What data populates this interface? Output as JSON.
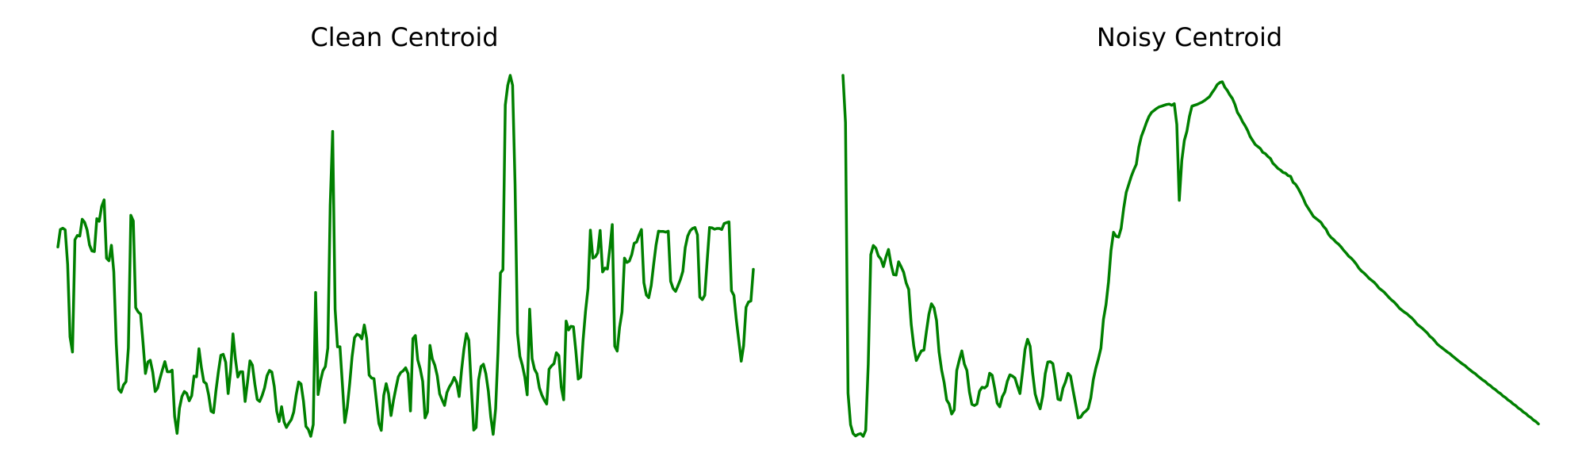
{
  "chart_data": [
    {
      "type": "line",
      "title": "Clean Centroid",
      "xlabel": "",
      "ylabel": "",
      "axes_visible": false,
      "grid": false,
      "color": "#008000",
      "series": [
        {
          "values": [
            0.579,
            0.632,
            0.636,
            0.631,
            0.526,
            0.306,
            0.26,
            0.601,
            0.614,
            0.612,
            0.663,
            0.654,
            0.631,
            0.585,
            0.567,
            0.565,
            0.665,
            0.657,
            0.702,
            0.722,
            0.545,
            0.537,
            0.584,
            0.503,
            0.285,
            0.147,
            0.138,
            0.16,
            0.17,
            0.273,
            0.675,
            0.658,
            0.395,
            0.382,
            0.375,
            0.29,
            0.195,
            0.23,
            0.235,
            0.199,
            0.14,
            0.15,
            0.18,
            0.207,
            0.231,
            0.2,
            0.2,
            0.205,
            0.065,
            0.013,
            0.089,
            0.125,
            0.14,
            0.134,
            0.112,
            0.127,
            0.187,
            0.185,
            0.27,
            0.214,
            0.17,
            0.164,
            0.13,
            0.08,
            0.076,
            0.142,
            0.2,
            0.25,
            0.253,
            0.229,
            0.134,
            0.2,
            0.315,
            0.24,
            0.184,
            0.2,
            0.2,
            0.11,
            0.17,
            0.233,
            0.22,
            0.162,
            0.116,
            0.11,
            0.128,
            0.151,
            0.188,
            0.204,
            0.199,
            0.155,
            0.08,
            0.049,
            0.094,
            0.048,
            0.031,
            0.044,
            0.055,
            0.078,
            0.13,
            0.169,
            0.163,
            0.111,
            0.034,
            0.025,
            0.004,
            0.04,
            0.441,
            0.131,
            0.173,
            0.203,
            0.216,
            0.272,
            0.706,
            0.93,
            0.39,
            0.276,
            0.276,
            0.161,
            0.046,
            0.092,
            0.165,
            0.246,
            0.304,
            0.314,
            0.311,
            0.3,
            0.342,
            0.301,
            0.19,
            0.181,
            0.179,
            0.11,
            0.043,
            0.022,
            0.128,
            0.164,
            0.133,
            0.067,
            0.113,
            0.15,
            0.185,
            0.198,
            0.203,
            0.212,
            0.194,
            0.081,
            0.301,
            0.31,
            0.236,
            0.209,
            0.171,
            0.06,
            0.078,
            0.28,
            0.239,
            0.22,
            0.188,
            0.133,
            0.115,
            0.098,
            0.137,
            0.154,
            0.166,
            0.183,
            0.167,
            0.125,
            0.204,
            0.27,
            0.316,
            0.296,
            0.156,
            0.023,
            0.031,
            0.175,
            0.216,
            0.223,
            0.194,
            0.142,
            0.064,
            0.01,
            0.088,
            0.262,
            0.5,
            0.51,
            1.01,
            1.07,
            1.1,
            1.07,
            0.77,
            0.317,
            0.247,
            0.22,
            0.184,
            0.13,
            0.39,
            0.24,
            0.208,
            0.194,
            0.151,
            0.13,
            0.114,
            0.102,
            0.208,
            0.218,
            0.225,
            0.258,
            0.249,
            0.153,
            0.115,
            0.354,
            0.327,
            0.338,
            0.337,
            0.262,
            0.178,
            0.184,
            0.296,
            0.384,
            0.453,
            0.63,
            0.545,
            0.549,
            0.561,
            0.629,
            0.503,
            0.515,
            0.512,
            0.576,
            0.647,
            0.278,
            0.263,
            0.335,
            0.382,
            0.545,
            0.532,
            0.536,
            0.556,
            0.59,
            0.594,
            0.615,
            0.632,
            0.47,
            0.433,
            0.425,
            0.462,
            0.527,
            0.585,
            0.627,
            0.626,
            0.626,
            0.624,
            0.627,
            0.475,
            0.453,
            0.444,
            0.461,
            0.48,
            0.505,
            0.577,
            0.612,
            0.628,
            0.635,
            0.638,
            0.616,
            0.427,
            0.419,
            0.432,
            0.535,
            0.638,
            0.637,
            0.633,
            0.635,
            0.635,
            0.632,
            0.65,
            0.653,
            0.655,
            0.446,
            0.432,
            0.358,
            0.296,
            0.232,
            0.279,
            0.396,
            0.412,
            0.415,
            0.511
          ]
        }
      ]
    },
    {
      "type": "line",
      "title": "Noisy Centroid",
      "xlabel": "",
      "ylabel": "",
      "axes_visible": false,
      "grid": false,
      "color": "#008000",
      "series": [
        {
          "values": [
            0.913,
            0.795,
            0.117,
            0.038,
            0.016,
            0.01,
            0.014,
            0.016,
            0.009,
            0.024,
            0.19,
            0.464,
            0.487,
            0.48,
            0.461,
            0.453,
            0.434,
            0.458,
            0.477,
            0.44,
            0.414,
            0.413,
            0.446,
            0.434,
            0.42,
            0.393,
            0.377,
            0.289,
            0.235,
            0.199,
            0.211,
            0.223,
            0.225,
            0.271,
            0.315,
            0.341,
            0.331,
            0.299,
            0.22,
            0.175,
            0.144,
            0.1,
            0.09,
            0.065,
            0.075,
            0.174,
            0.2,
            0.223,
            0.19,
            0.174,
            0.12,
            0.089,
            0.086,
            0.09,
            0.122,
            0.132,
            0.13,
            0.136,
            0.167,
            0.162,
            0.13,
            0.092,
            0.083,
            0.108,
            0.12,
            0.147,
            0.163,
            0.16,
            0.155,
            0.135,
            0.116,
            0.169,
            0.227,
            0.252,
            0.235,
            0.167,
            0.115,
            0.093,
            0.078,
            0.11,
            0.166,
            0.195,
            0.196,
            0.191,
            0.15,
            0.102,
            0.1,
            0.13,
            0.145,
            0.167,
            0.16,
            0.124,
            0.09,
            0.055,
            0.057,
            0.067,
            0.072,
            0.079,
            0.105,
            0.151,
            0.18,
            0.203,
            0.23,
            0.302,
            0.339,
            0.396,
            0.474,
            0.52,
            0.51,
            0.508,
            0.53,
            0.58,
            0.62,
            0.64,
            0.66,
            0.676,
            0.69,
            0.733,
            0.76,
            0.777,
            0.795,
            0.81,
            0.82,
            0.825,
            0.83,
            0.834,
            0.836,
            0.838,
            0.84,
            0.841,
            0.838,
            0.842,
            0.79,
            0.6,
            0.7,
            0.75,
            0.773,
            0.81,
            0.836,
            0.838,
            0.84,
            0.843,
            0.846,
            0.85,
            0.855,
            0.86,
            0.87,
            0.879,
            0.89,
            0.895,
            0.897,
            0.883,
            0.875,
            0.864,
            0.855,
            0.84,
            0.82,
            0.81,
            0.797,
            0.787,
            0.775,
            0.76,
            0.75,
            0.74,
            0.735,
            0.73,
            0.72,
            0.717,
            0.71,
            0.705,
            0.693,
            0.687,
            0.68,
            0.676,
            0.67,
            0.668,
            0.662,
            0.66,
            0.645,
            0.64,
            0.63,
            0.618,
            0.605,
            0.59,
            0.58,
            0.57,
            0.56,
            0.555,
            0.55,
            0.545,
            0.535,
            0.528,
            0.515,
            0.507,
            0.502,
            0.495,
            0.49,
            0.483,
            0.475,
            0.468,
            0.46,
            0.455,
            0.448,
            0.44,
            0.43,
            0.423,
            0.418,
            0.412,
            0.405,
            0.4,
            0.395,
            0.388,
            0.38,
            0.375,
            0.37,
            0.363,
            0.356,
            0.35,
            0.345,
            0.338,
            0.33,
            0.325,
            0.32,
            0.316,
            0.31,
            0.305,
            0.298,
            0.29,
            0.285,
            0.28,
            0.274,
            0.268,
            0.26,
            0.255,
            0.248,
            0.24,
            0.235,
            0.23,
            0.225,
            0.22,
            0.216,
            0.21,
            0.205,
            0.2,
            0.195,
            0.19,
            0.186,
            0.18,
            0.175,
            0.17,
            0.166,
            0.16,
            0.155,
            0.15,
            0.146,
            0.14,
            0.136,
            0.13,
            0.126,
            0.12,
            0.116,
            0.11,
            0.106,
            0.1,
            0.096,
            0.09,
            0.086,
            0.08,
            0.076,
            0.07,
            0.066,
            0.06,
            0.056,
            0.05,
            0.046,
            0.04
          ]
        }
      ]
    }
  ]
}
